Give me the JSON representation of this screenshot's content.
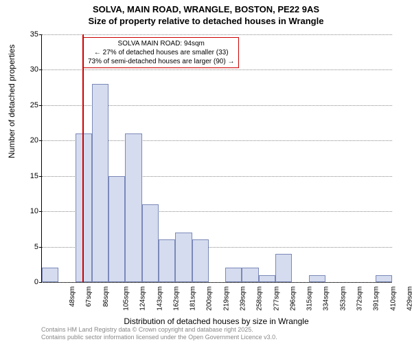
{
  "title": {
    "line1": "SOLVA, MAIN ROAD, WRANGLE, BOSTON, PE22 9AS",
    "line2": "Size of property relative to detached houses in Wrangle",
    "fontsize": 13,
    "fontweight": "bold",
    "color": "#000000"
  },
  "chart": {
    "type": "histogram",
    "background_color": "#ffffff",
    "bar_fill": "#d5dcef",
    "bar_border": "#7a88b8",
    "grid_color": "#888888",
    "ylim": [
      0,
      35
    ],
    "ytick_step": 5,
    "yticks": [
      0,
      5,
      10,
      15,
      20,
      25,
      30,
      35
    ],
    "ylabel": "Number of detached properties",
    "xlabel": "Distribution of detached houses by size in Wrangle",
    "label_fontsize": 12,
    "tick_fontsize": 10,
    "xticks": [
      "48sqm",
      "67sqm",
      "86sqm",
      "105sqm",
      "124sqm",
      "143sqm",
      "162sqm",
      "181sqm",
      "200sqm",
      "219sqm",
      "239sqm",
      "258sqm",
      "277sqm",
      "296sqm",
      "315sqm",
      "334sqm",
      "353sqm",
      "372sqm",
      "391sqm",
      "410sqm",
      "429sqm"
    ],
    "values": [
      2,
      0,
      21,
      28,
      15,
      21,
      11,
      6,
      7,
      6,
      0,
      2,
      2,
      1,
      4,
      0,
      1,
      0,
      0,
      0,
      1
    ],
    "marker": {
      "value_index": 2.42,
      "color": "#cc0000",
      "width": 2
    },
    "annotation": {
      "border_color": "#cc0000",
      "background": "#ffffff",
      "fontsize": 10,
      "line1": "SOLVA MAIN ROAD: 94sqm",
      "line2": "← 27% of detached houses are smaller (33)",
      "line3": "73% of semi-detached houses are larger (90) →"
    }
  },
  "footer": {
    "line1": "Contains HM Land Registry data © Crown copyright and database right 2025.",
    "line2": "Contains public sector information licensed under the Open Government Licence v3.0.",
    "color": "#888888",
    "fontsize": 9
  }
}
